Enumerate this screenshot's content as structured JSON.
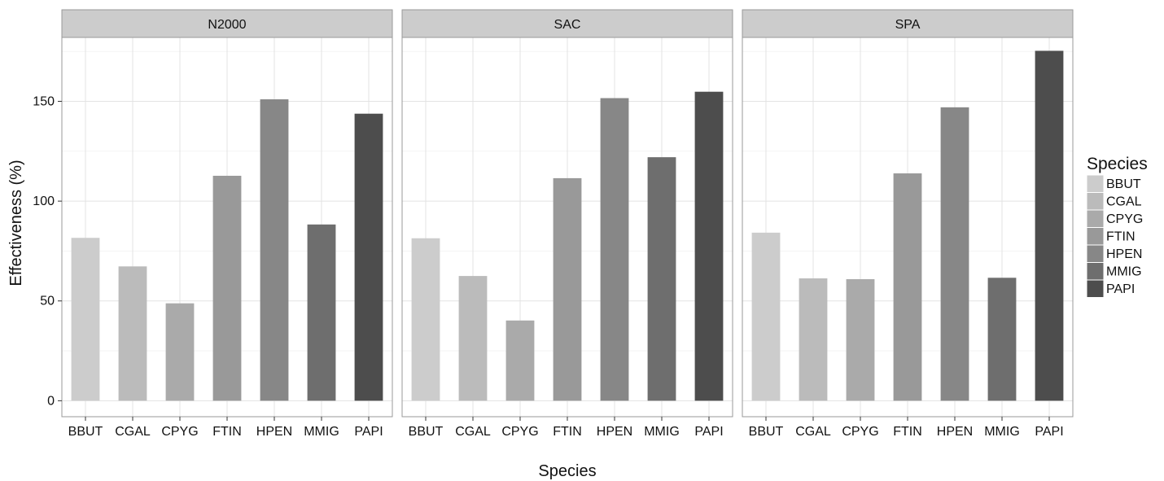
{
  "chart_data": {
    "type": "bar",
    "xlabel": "Species",
    "ylabel": "Effectiveness (%)",
    "ylim": [
      -8,
      182
    ],
    "yticks": [
      0,
      50,
      100,
      150
    ],
    "grid": true,
    "legend": {
      "title": "Species",
      "placement": "right",
      "entries": [
        "BBUT",
        "CGAL",
        "CPYG",
        "FTIN",
        "HPEN",
        "MMIG",
        "PAPI"
      ]
    },
    "categories": [
      "BBUT",
      "CGAL",
      "CPYG",
      "FTIN",
      "HPEN",
      "MMIG",
      "PAPI"
    ],
    "colors": [
      "#cccccc",
      "#bbbbbb",
      "#aaaaaa",
      "#999999",
      "#878787",
      "#6e6e6e",
      "#4d4d4d"
    ],
    "panels": [
      {
        "name": "N2000",
        "values": [
          81.6,
          67.3,
          48.8,
          112.7,
          151.0,
          88.3,
          143.8
        ]
      },
      {
        "name": "SAC",
        "values": [
          81.4,
          62.5,
          40.2,
          111.5,
          151.6,
          122.0,
          154.8
        ]
      },
      {
        "name": "SPA",
        "values": [
          84.2,
          61.3,
          60.9,
          113.9,
          147.0,
          61.6,
          175.3
        ]
      }
    ]
  }
}
